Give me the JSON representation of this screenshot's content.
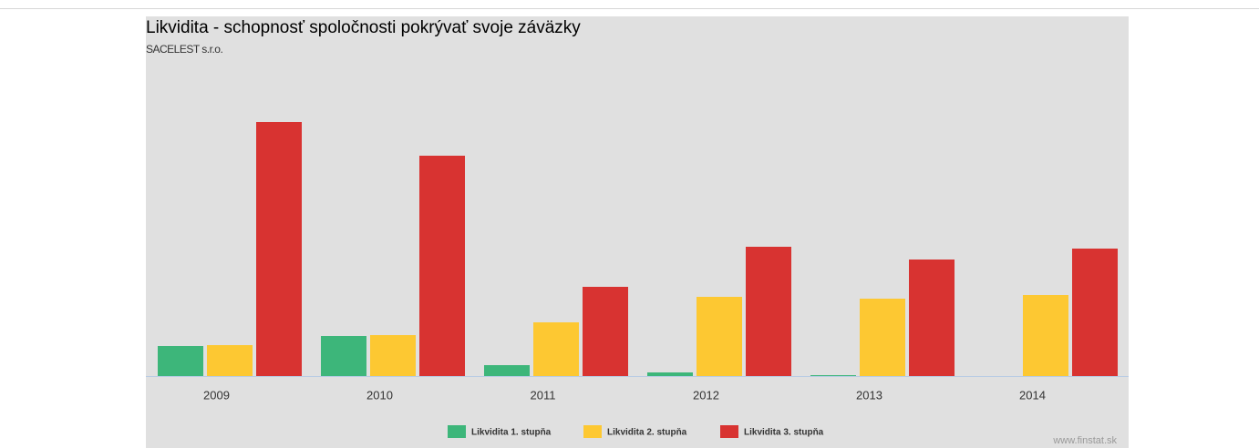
{
  "chart_data": {
    "type": "bar",
    "title": "Likvidita - schopnosť spoločnosti pokrývať svoje záväzky",
    "subtitle": "SACELEST s.r.o.",
    "credit": "www.finstat.sk",
    "categories": [
      "2009",
      "2010",
      "2011",
      "2012",
      "2013",
      "2014"
    ],
    "series": [
      {
        "name": "Likvidita 1. stupňa",
        "color": "#3db67a",
        "values": [
          0.33,
          0.44,
          0.12,
          0.04,
          0.01,
          0
        ]
      },
      {
        "name": "Likvidita 2. stupňa",
        "color": "#fdc832",
        "values": [
          0.34,
          0.45,
          0.59,
          0.87,
          0.85,
          0.89
        ]
      },
      {
        "name": "Likvidita 3. stupňa",
        "color": "#d83331",
        "values": [
          2.79,
          2.42,
          0.98,
          1.42,
          1.28,
          1.4
        ]
      }
    ],
    "ylim": [
      0,
      3.95
    ],
    "grid": false
  }
}
